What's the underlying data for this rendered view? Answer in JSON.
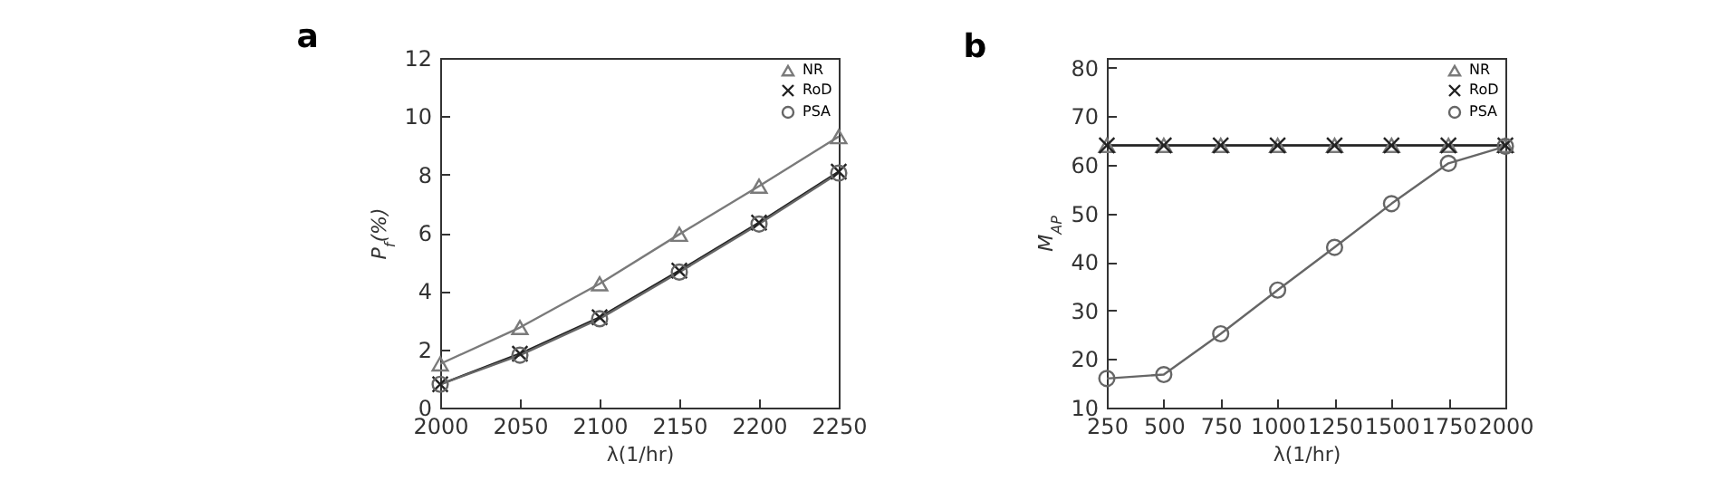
{
  "chart_data": [
    {
      "type": "line",
      "title": "a",
      "xlabel": "λ(1/hr)",
      "ylabel": "P$_{f}$(%)",
      "x": [
        2000,
        2050,
        2100,
        2150,
        2200,
        2250
      ],
      "xlim": [
        2000,
        2250
      ],
      "xticks": [
        2000,
        2050,
        2100,
        2150,
        2200,
        2250
      ],
      "ylim": [
        0,
        12
      ],
      "yticks": [
        0,
        2,
        4,
        6,
        8,
        10,
        12
      ],
      "legend": "top right",
      "grid": false,
      "series": [
        {
          "name": "NR",
          "color": "#7a7a7a",
          "marker": "triangle",
          "values": [
            1.5,
            2.75,
            4.25,
            5.95,
            7.6,
            9.3
          ]
        },
        {
          "name": "RoD",
          "color": "#222222",
          "marker": "cross",
          "values": [
            0.8,
            1.85,
            3.1,
            4.7,
            6.35,
            8.1
          ]
        },
        {
          "name": "PSA",
          "color": "#666666",
          "marker": "circle",
          "values": [
            0.8,
            1.8,
            3.05,
            4.65,
            6.3,
            8.05
          ]
        }
      ]
    },
    {
      "type": "line",
      "title": "b",
      "xlabel": "λ(1/hr)",
      "ylabel": "M$_{AP}$",
      "x": [
        250,
        500,
        750,
        1000,
        1250,
        1500,
        1750,
        2000
      ],
      "xlim": [
        250,
        2000
      ],
      "xticks": [
        250,
        500,
        750,
        1000,
        1250,
        1500,
        1750,
        2000
      ],
      "ylim": [
        10,
        82
      ],
      "yticks": [
        10,
        20,
        30,
        40,
        50,
        60,
        70,
        80
      ],
      "legend": "top right",
      "grid": false,
      "series": [
        {
          "name": "NR",
          "color": "#7a7a7a",
          "marker": "triangle",
          "values": [
            64,
            64,
            64,
            64,
            64,
            64,
            64,
            64
          ]
        },
        {
          "name": "RoD",
          "color": "#222222",
          "marker": "cross",
          "values": [
            64,
            64,
            64,
            64,
            64,
            64,
            64,
            64
          ]
        },
        {
          "name": "PSA",
          "color": "#666666",
          "marker": "circle",
          "values": [
            16,
            16.8,
            25.2,
            34.2,
            43,
            52,
            60.3,
            63.8
          ]
        }
      ]
    }
  ]
}
